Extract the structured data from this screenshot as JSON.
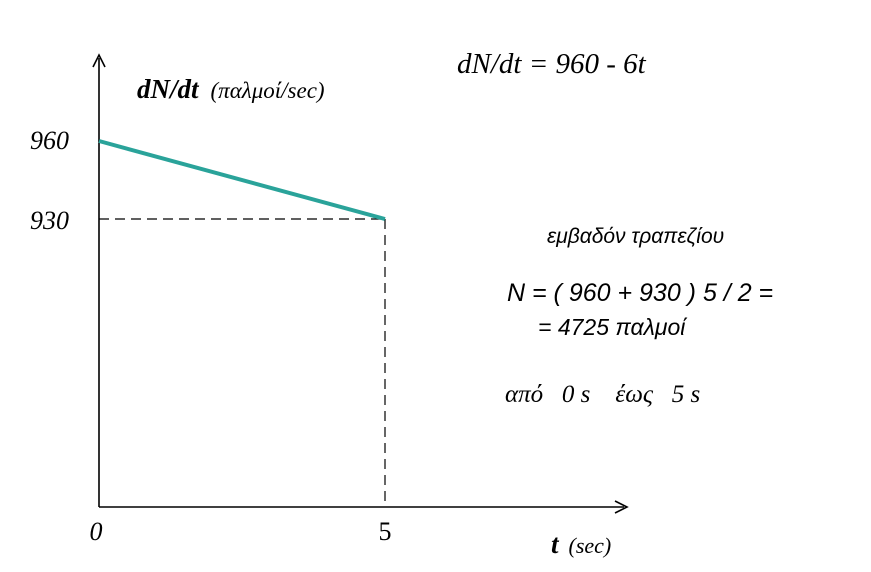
{
  "chart_data": {
    "type": "line",
    "x": [
      0,
      5
    ],
    "y": [
      960,
      930
    ],
    "x_ticks": [
      "0",
      "5"
    ],
    "y_ticks": [
      "960",
      "930"
    ],
    "xlim": [
      0,
      5
    ],
    "ylim": [
      930,
      960
    ],
    "ylabel_main": "dN/dt",
    "ylabel_unit": "(παλμοί/sec)",
    "xlabel_main": "t",
    "xlabel_unit": "(sec)",
    "line_color": "#2aa39a",
    "grid": false
  },
  "annotations": {
    "equation": "dN/dt = 960 - 6t",
    "area_title": "εμβαδόν τραπεζίου",
    "calc_line1": "N =  ( 960 + 930 ) 5  /  2 =",
    "calc_line2": "=  4725 παλμοί",
    "range_text": "από   0 s    έως   5 s"
  }
}
